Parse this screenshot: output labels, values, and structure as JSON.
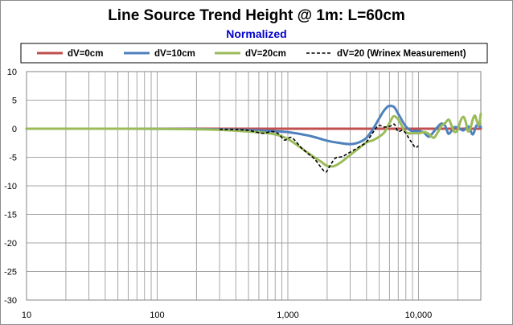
{
  "title": "Line Source Trend Height @ 1m: L=60cm",
  "subtitle": "Normalized",
  "chart_data": {
    "type": "line",
    "x_scale": "log",
    "xlim": [
      10,
      30000
    ],
    "ylim": [
      -30,
      10
    ],
    "grid": true,
    "legend_position": "top",
    "x_ticks": [
      {
        "value": 10,
        "label": "10"
      },
      {
        "value": 100,
        "label": "100"
      },
      {
        "value": 1000,
        "label": "1,000"
      },
      {
        "value": 10000,
        "label": "10,000"
      }
    ],
    "y_ticks": [
      {
        "value": 10,
        "label": "10"
      },
      {
        "value": 5,
        "label": "5"
      },
      {
        "value": 0,
        "label": "0"
      },
      {
        "value": -5,
        "label": "-5"
      },
      {
        "value": -10,
        "label": "-10"
      },
      {
        "value": -15,
        "label": "-15"
      },
      {
        "value": -20,
        "label": "-20"
      },
      {
        "value": -25,
        "label": "-25"
      },
      {
        "value": -30,
        "label": "-30"
      }
    ],
    "series": [
      {
        "name": "dV=0cm",
        "color": "#c0504d",
        "dash": "solid",
        "x": [
          10,
          30000
        ],
        "y": [
          0,
          0
        ]
      },
      {
        "name": "dV=10cm",
        "color": "#4f81bd",
        "dash": "solid",
        "x": [
          10,
          50,
          300,
          600,
          1000,
          1500,
          2000,
          2500,
          3000,
          3500,
          4000,
          4500,
          5000,
          5500,
          6000,
          6500,
          7000,
          8000,
          9000,
          10000,
          11000,
          12000,
          13000,
          14000,
          15000,
          16000,
          17000,
          18000,
          19000,
          20000,
          22000,
          24000,
          26000,
          28000,
          30000
        ],
        "y": [
          0,
          0,
          -0.1,
          -0.3,
          -0.6,
          -1.3,
          -2.1,
          -2.5,
          -2.7,
          -2.4,
          -1.6,
          0.0,
          1.8,
          3.3,
          4.0,
          3.8,
          2.6,
          0.4,
          -0.4,
          -0.4,
          -0.7,
          -1.4,
          -0.6,
          0.3,
          0.9,
          0.5,
          -0.9,
          -0.3,
          0.3,
          0.2,
          -0.3,
          0.4,
          -1.0,
          0.6,
          0.3
        ]
      },
      {
        "name": "dV=20cm",
        "color": "#9bbb59",
        "dash": "solid",
        "x": [
          10,
          50,
          300,
          500,
          800,
          1000,
          1200,
          1500,
          1800,
          2000,
          2200,
          2500,
          3000,
          3500,
          4000,
          4500,
          5000,
          5500,
          6000,
          6500,
          7000,
          7500,
          8000,
          9000,
          10000,
          11000,
          12000,
          13000,
          14000,
          15000,
          16000,
          17000,
          18000,
          19000,
          20000,
          21000,
          22000,
          23000,
          24000,
          25000,
          26000,
          27000,
          28000,
          29000,
          30000
        ],
        "y": [
          0,
          0,
          -0.2,
          -0.5,
          -1.0,
          -1.8,
          -3.0,
          -4.6,
          -5.8,
          -6.5,
          -6.6,
          -6.0,
          -4.6,
          -3.4,
          -2.4,
          -2.0,
          -1.4,
          -0.6,
          1.0,
          2.2,
          1.6,
          0.4,
          -0.6,
          -0.8,
          -0.8,
          -0.6,
          -0.9,
          -1.6,
          -0.7,
          0.5,
          1.0,
          1.6,
          0.4,
          -0.6,
          -0.2,
          1.4,
          2.1,
          1.2,
          -0.5,
          0.1,
          1.6,
          2.3,
          1.3,
          0.6,
          2.6
        ]
      },
      {
        "name": "dV=20 (Wrinex Measurement)",
        "color": "#000000",
        "dash": "dashed",
        "x": [
          300,
          500,
          650,
          750,
          850,
          950,
          1050,
          1150,
          1250,
          1400,
          1600,
          1800,
          1950,
          2100,
          2300,
          2600,
          3000,
          3500,
          4000,
          4500,
          5000,
          5500,
          6000,
          6500,
          7000,
          7500,
          8000,
          8500,
          9000,
          9500,
          10000
        ],
        "y": [
          -0.1,
          -0.3,
          -0.8,
          -0.5,
          -0.9,
          -2.0,
          -1.5,
          -2.2,
          -3.2,
          -4.2,
          -5.3,
          -6.8,
          -7.6,
          -6.5,
          -5.2,
          -4.9,
          -4.1,
          -3.2,
          -2.3,
          -0.6,
          0.6,
          0.3,
          0.4,
          0.8,
          -0.5,
          -0.3,
          -0.8,
          -1.8,
          -2.6,
          -3.3,
          -3.0
        ]
      }
    ]
  }
}
